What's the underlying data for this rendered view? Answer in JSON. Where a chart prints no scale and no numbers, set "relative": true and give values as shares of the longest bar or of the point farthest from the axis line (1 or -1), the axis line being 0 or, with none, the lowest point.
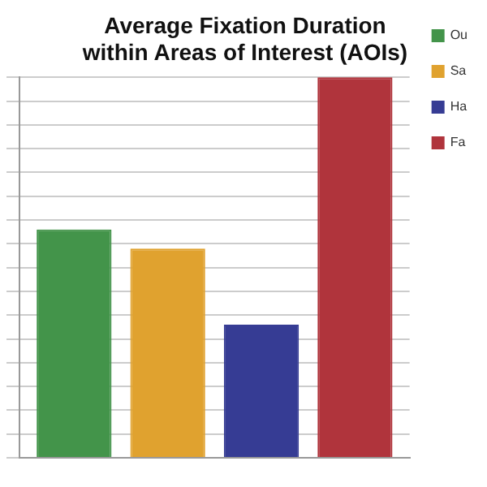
{
  "chart_data": {
    "type": "bar",
    "title": "Average Fixation Duration within Areas of Interest (AOIs)",
    "categories": [
      null
    ],
    "relative": true,
    "grid": "y",
    "legend": "right",
    "series": [
      {
        "name": "Ou",
        "color": "#43944a",
        "values": [
          0.6
        ]
      },
      {
        "name": "Sa",
        "color": "#e0a22f",
        "values": [
          0.55
        ]
      },
      {
        "name": "Ha",
        "color": "#363c94",
        "values": [
          0.35
        ]
      },
      {
        "name": "Fa",
        "color": "#b0343c",
        "values": [
          1
        ]
      }
    ]
  }
}
